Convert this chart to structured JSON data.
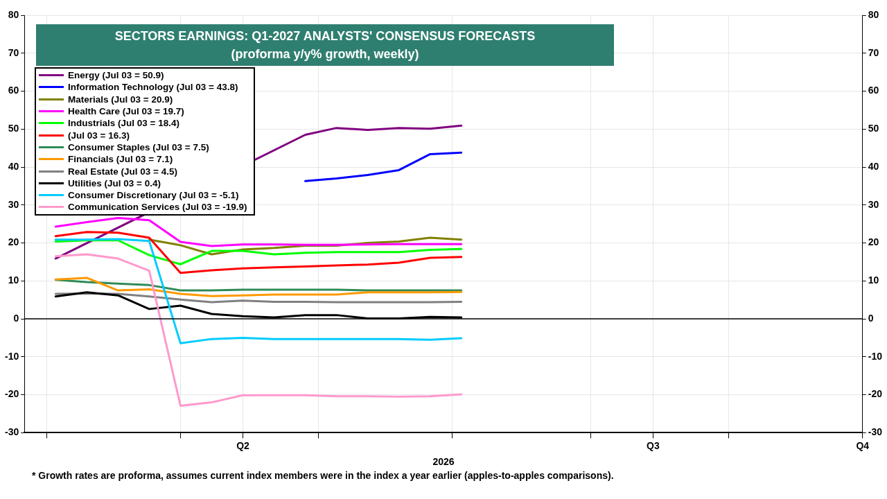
{
  "chart_data": {
    "type": "line",
    "title": "SECTORS EARNINGS: Q1-2027 ANALYSTS' CONSENSUS FORECASTS",
    "subtitle": "(proforma y/y% growth, weekly)",
    "xlabel": "2026",
    "x": [
      "2026-04-03",
      "2026-04-10",
      "2026-04-17",
      "2026-04-24",
      "2026-05-01",
      "2026-05-08",
      "2026-05-15",
      "2026-05-22",
      "2026-05-29",
      "2026-06-05",
      "2026-06-12",
      "2026-06-19",
      "2026-06-26",
      "2026-07-03"
    ],
    "xlim": [
      "2026-03-27",
      "2026-10-01"
    ],
    "xticks": [
      {
        "value": "2026-04-01",
        "label": null
      },
      {
        "value": "2026-05-01",
        "label": null
      },
      {
        "value": "2026-05-15",
        "label": "Q2"
      },
      {
        "value": "2026-06-01",
        "label": null
      },
      {
        "value": "2026-07-01",
        "label": null
      },
      {
        "value": "2026-08-01",
        "label": null
      },
      {
        "value": "2026-08-15",
        "label": "Q3"
      },
      {
        "value": "2026-09-01",
        "label": null
      },
      {
        "value": "2026-10-01",
        "label": "Q4"
      }
    ],
    "ylim": [
      -30,
      80
    ],
    "yticks": [
      -30,
      -20,
      -10,
      0,
      10,
      20,
      30,
      40,
      50,
      60,
      70,
      80
    ],
    "y2lim": [
      -30,
      80
    ],
    "y2ticks": [
      -30,
      -20,
      -10,
      0,
      10,
      20,
      30,
      40,
      50,
      60,
      70,
      80
    ],
    "grid": true,
    "legend": "top left",
    "marker": "none",
    "line_style": "solid",
    "ref_lines": [
      {
        "axis": "y",
        "value": 0,
        "color": "#000000"
      }
    ],
    "annotations": [
      "* Growth rates are proforma, assumes current index members were in the index a year earlier (apples-to-apples comparisons)."
    ],
    "series": [
      {
        "name": "Energy (Jul 03 = 50.9)",
        "color": "#800080",
        "values": [
          15.9,
          null,
          null,
          null,
          null,
          null,
          null,
          null,
          48.5,
          50.3,
          49.8,
          50.3,
          50.1,
          50.9
        ]
      },
      {
        "name": "Information Technology (Jul 03 = 43.8)",
        "color": "#0000ff",
        "values": [
          null,
          null,
          null,
          null,
          null,
          null,
          null,
          null,
          36.3,
          37.0,
          37.9,
          39.2,
          43.4,
          43.8
        ]
      },
      {
        "name": "Materials (Jul 03 = 20.9)",
        "color": "#808000",
        "values": [
          null,
          null,
          null,
          20.9,
          19.4,
          17.0,
          18.3,
          18.7,
          19.3,
          19.3,
          20.0,
          20.4,
          21.4,
          20.9
        ]
      },
      {
        "name": "Health Care (Jul 03 = 19.7)",
        "color": "#ff00ff",
        "values": [
          24.3,
          25.5,
          26.6,
          26.0,
          20.3,
          19.2,
          19.6,
          19.6,
          19.5,
          19.5,
          19.6,
          19.7,
          19.7,
          19.7
        ]
      },
      {
        "name": "Industrials (Jul 03 = 18.4)",
        "color": "#00ff00",
        "values": [
          20.4,
          20.7,
          20.7,
          16.8,
          14.4,
          17.9,
          17.9,
          17.0,
          17.4,
          17.6,
          17.6,
          17.6,
          18.2,
          18.4
        ]
      },
      {
        "name": "(Jul 03 = 16.3)",
        "color": "#ff0000",
        "values": [
          21.8,
          22.9,
          22.7,
          21.4,
          12.1,
          12.8,
          13.3,
          13.6,
          13.8,
          14.1,
          14.3,
          14.8,
          16.1,
          16.3
        ]
      },
      {
        "name": "Consumer Staples (Jul 03 = 7.5)",
        "color": "#2e8b57",
        "values": [
          10.3,
          9.7,
          9.3,
          8.9,
          7.5,
          7.5,
          7.7,
          7.7,
          7.7,
          7.7,
          7.5,
          7.5,
          7.5,
          7.5
        ]
      },
      {
        "name": "Financials (Jul 03 = 7.1)",
        "color": "#ff9900",
        "values": [
          10.4,
          10.8,
          7.5,
          7.8,
          6.6,
          6.0,
          6.2,
          6.4,
          6.4,
          6.4,
          7.0,
          7.0,
          7.0,
          7.1
        ]
      },
      {
        "name": "Real Estate (Jul 03 = 4.5)",
        "color": "#808080",
        "values": [
          6.6,
          6.7,
          6.6,
          5.9,
          5.1,
          4.4,
          4.8,
          4.5,
          4.5,
          4.4,
          4.4,
          4.4,
          4.4,
          4.5
        ]
      },
      {
        "name": "Utilities (Jul 03 = 0.4)",
        "color": "#000000",
        "values": [
          5.9,
          7.0,
          6.2,
          2.6,
          3.5,
          1.3,
          0.7,
          0.4,
          1.0,
          1.0,
          0.1,
          0.1,
          0.5,
          0.4
        ]
      },
      {
        "name": "Consumer Discretionary (Jul 03 = -5.1)",
        "color": "#00ccff",
        "values": [
          20.9,
          20.9,
          21.0,
          20.5,
          -6.4,
          -5.3,
          -5.0,
          -5.3,
          -5.3,
          -5.3,
          -5.3,
          -5.3,
          -5.5,
          -5.1
        ]
      },
      {
        "name": "Communication Services (Jul 03 = -19.9)",
        "color": "#ff99cc",
        "values": [
          16.5,
          17.0,
          15.9,
          12.7,
          -22.9,
          -22.0,
          -20.1,
          -20.1,
          -20.1,
          -20.4,
          -20.4,
          -20.5,
          -20.4,
          -19.9
        ]
      }
    ]
  }
}
